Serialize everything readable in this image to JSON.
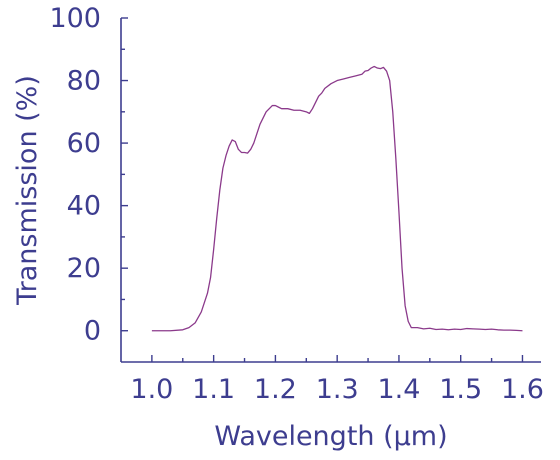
{
  "chart_data": {
    "type": "line",
    "title": "",
    "xlabel": "Wavelength (µm)",
    "ylabel": "Transmission (%)",
    "xlim": [
      0.95,
      1.63
    ],
    "ylim": [
      -10,
      100
    ],
    "x_ticks": [
      "1.0",
      "1.1",
      "1.2",
      "1.3",
      "1.4",
      "1.5",
      "1.6"
    ],
    "y_ticks": [
      "0",
      "20",
      "40",
      "60",
      "80",
      "100"
    ],
    "grid": false,
    "legend": "none",
    "colors": {
      "axis": "#3d3d8f",
      "line": "#8b3a8b"
    },
    "series": [
      {
        "x": [
          1.0,
          1.03,
          1.05,
          1.06,
          1.07,
          1.08,
          1.09,
          1.095,
          1.1,
          1.105,
          1.11,
          1.115,
          1.12,
          1.125,
          1.13,
          1.135,
          1.14,
          1.145,
          1.15,
          1.155,
          1.16,
          1.165,
          1.17,
          1.175,
          1.18,
          1.185,
          1.19,
          1.195,
          1.2,
          1.205,
          1.21,
          1.22,
          1.23,
          1.24,
          1.25,
          1.255,
          1.26,
          1.265,
          1.27,
          1.275,
          1.28,
          1.29,
          1.3,
          1.31,
          1.32,
          1.33,
          1.34,
          1.345,
          1.35,
          1.355,
          1.36,
          1.365,
          1.37,
          1.375,
          1.38,
          1.385,
          1.39,
          1.395,
          1.4,
          1.405,
          1.41,
          1.415,
          1.42,
          1.43,
          1.44,
          1.45,
          1.46,
          1.47,
          1.48,
          1.49,
          1.5,
          1.51,
          1.52,
          1.53,
          1.54,
          1.55,
          1.56,
          1.57,
          1.58,
          1.59,
          1.6
        ],
        "y": [
          0,
          0,
          0.3,
          1,
          2.5,
          6,
          12,
          17,
          26,
          36,
          45,
          52,
          56,
          59,
          61,
          60.5,
          58,
          57,
          57,
          56.8,
          58,
          60,
          63,
          66,
          68,
          70,
          71,
          72,
          72,
          71.5,
          71,
          71,
          70.5,
          70.5,
          70,
          69.5,
          71,
          73,
          75,
          76,
          77.5,
          79,
          80,
          80.5,
          81,
          81.5,
          82,
          83,
          83.2,
          84,
          84.5,
          84,
          83.8,
          84.2,
          83,
          80,
          70,
          55,
          38,
          20,
          8,
          3,
          1,
          1,
          0.6,
          0.8,
          0.4,
          0.5,
          0.3,
          0.5,
          0.4,
          0.7,
          0.6,
          0.5,
          0.4,
          0.5,
          0.3,
          0.2,
          0.2,
          0.1,
          0
        ]
      }
    ]
  }
}
